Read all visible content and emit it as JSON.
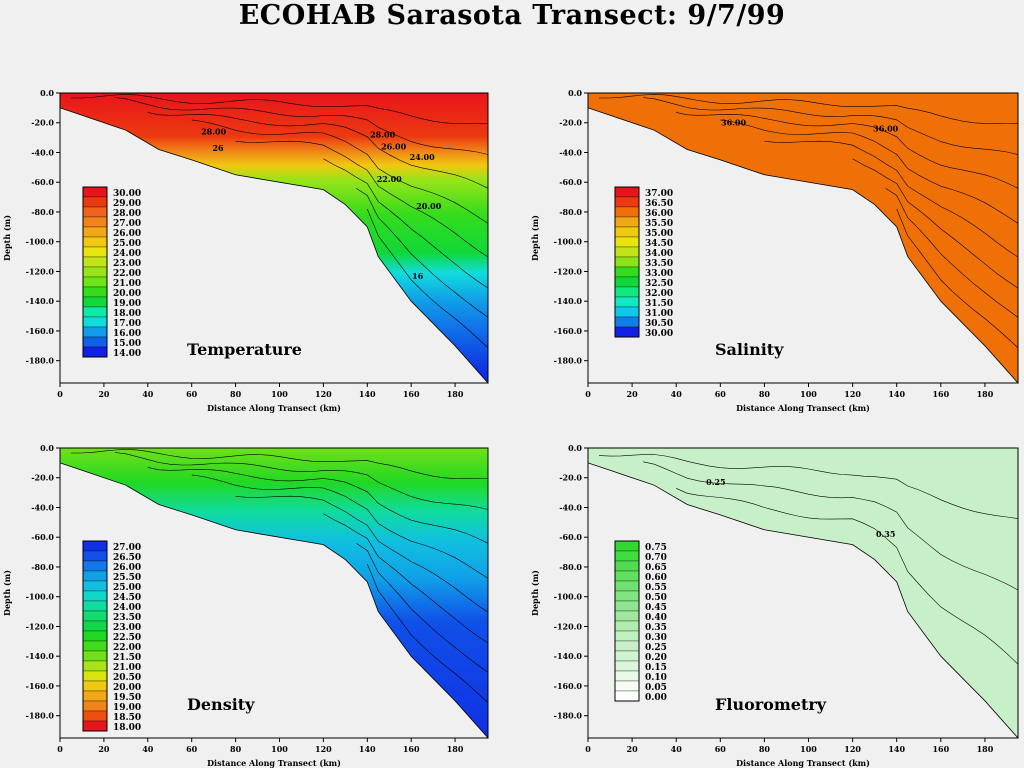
{
  "title": "ECOHAB Sarasota Transect: 9/7/99",
  "x_ticks": [
    "0",
    "20",
    "40",
    "60",
    "80",
    "100",
    "120",
    "140",
    "160",
    "180"
  ],
  "y_ticks": [
    "0.0",
    "-20.0",
    "-40.0",
    "-60.0",
    "-80.0",
    "-100.0",
    "-120.0",
    "-140.0",
    "-160.0",
    "-180.0"
  ],
  "chart_data": [
    {
      "type": "heatmap",
      "name": "Temperature",
      "title": "Temperature",
      "xlabel": "Distance Along Transect (km)",
      "ylabel": "Depth (m)",
      "xlim": [
        0,
        195
      ],
      "ylim": [
        -195,
        0
      ],
      "bottom_profile": {
        "x": [
          0,
          10,
          30,
          45,
          60,
          80,
          120,
          130,
          140,
          145,
          160,
          180,
          195
        ],
        "depth": [
          -10,
          -15,
          -25,
          -38,
          -45,
          -55,
          -65,
          -75,
          -90,
          -110,
          -140,
          -170,
          -195
        ]
      },
      "legend_levels": [
        "30.00",
        "29.00",
        "28.00",
        "27.00",
        "26.00",
        "25.00",
        "24.00",
        "23.00",
        "22.00",
        "21.00",
        "20.00",
        "19.00",
        "18.00",
        "17.00",
        "16.00",
        "15.00",
        "14.00"
      ],
      "legend_colors": [
        "#e8141c",
        "#ec3a10",
        "#f0621c",
        "#f08418",
        "#f0a814",
        "#f0c810",
        "#e8e410",
        "#c0e418",
        "#98e418",
        "#6ce418",
        "#34dc1c",
        "#10d838",
        "#10e8a8",
        "#10dcdc",
        "#109ce8",
        "#1060e8",
        "#1020e4"
      ],
      "contour_labels": [
        {
          "x": 70,
          "y": -28,
          "text": "28.00"
        },
        {
          "x": 147,
          "y": -30,
          "text": "28.00"
        },
        {
          "x": 152,
          "y": -38,
          "text": "26.00"
        },
        {
          "x": 165,
          "y": -45,
          "text": "24.00"
        },
        {
          "x": 150,
          "y": -60,
          "text": "22.00"
        },
        {
          "x": 168,
          "y": -78,
          "text": "20.00"
        },
        {
          "x": 72,
          "y": -39,
          "text": "26"
        },
        {
          "x": 163,
          "y": -125,
          "text": "16"
        }
      ]
    },
    {
      "type": "heatmap",
      "name": "Salinity",
      "title": "Salinity",
      "xlabel": "Distance Along Transect (km)",
      "ylabel": "Depth (m)",
      "xlim": [
        0,
        195
      ],
      "ylim": [
        -195,
        0
      ],
      "bottom_profile": {
        "x": [
          0,
          10,
          30,
          45,
          60,
          80,
          120,
          130,
          140,
          145,
          160,
          180,
          195
        ],
        "depth": [
          -10,
          -15,
          -25,
          -38,
          -45,
          -55,
          -65,
          -75,
          -90,
          -110,
          -140,
          -170,
          -195
        ]
      },
      "legend_levels": [
        "37.00",
        "36.50",
        "36.00",
        "35.50",
        "35.00",
        "34.50",
        "34.00",
        "33.50",
        "33.00",
        "32.50",
        "32.00",
        "31.50",
        "31.00",
        "30.50",
        "30.00"
      ],
      "legend_colors": [
        "#e8141c",
        "#ec3a10",
        "#f07008",
        "#f0a814",
        "#f0c810",
        "#e8e410",
        "#c0e418",
        "#8ce418",
        "#34dc1c",
        "#10d838",
        "#10e880",
        "#10e8c8",
        "#10c8e8",
        "#1080e8",
        "#1020e4"
      ],
      "contour_labels": [
        {
          "x": 66,
          "y": -22,
          "text": "36.00"
        },
        {
          "x": 135,
          "y": -26,
          "text": "36.00"
        }
      ]
    },
    {
      "type": "heatmap",
      "name": "Density",
      "title": "Density",
      "xlabel": "Distance Along Transect (km)",
      "ylabel": "Depth (m)",
      "xlim": [
        0,
        195
      ],
      "ylim": [
        -195,
        0
      ],
      "bottom_profile": {
        "x": [
          0,
          10,
          30,
          45,
          60,
          80,
          120,
          130,
          140,
          145,
          160,
          180,
          195
        ],
        "depth": [
          -10,
          -15,
          -25,
          -38,
          -45,
          -55,
          -65,
          -75,
          -90,
          -110,
          -140,
          -170,
          -195
        ]
      },
      "legend_levels": [
        "27.00",
        "26.50",
        "26.00",
        "25.50",
        "25.00",
        "24.50",
        "24.00",
        "23.50",
        "23.00",
        "22.50",
        "22.00",
        "21.50",
        "21.00",
        "20.50",
        "20.00",
        "19.50",
        "19.00",
        "18.50",
        "18.00"
      ],
      "legend_colors": [
        "#1030e4",
        "#1050e8",
        "#1078e8",
        "#10a0e8",
        "#10c0e0",
        "#10d8c8",
        "#10dca0",
        "#10dc70",
        "#10d848",
        "#20d824",
        "#40dc18",
        "#70e018",
        "#a8e418",
        "#d8e410",
        "#f0c810",
        "#f0a814",
        "#f08418",
        "#ec5010",
        "#e8141c"
      ],
      "contour_labels": []
    },
    {
      "type": "heatmap",
      "name": "Fluorometry",
      "title": "Fluorometry",
      "xlabel": "Distance Along Transect (km)",
      "ylabel": "Depth (m)",
      "xlim": [
        0,
        195
      ],
      "ylim": [
        -195,
        0
      ],
      "bottom_profile": {
        "x": [
          0,
          10,
          30,
          45,
          60,
          80,
          120,
          130,
          140,
          145,
          160,
          180,
          195
        ],
        "depth": [
          -10,
          -15,
          -25,
          -38,
          -45,
          -55,
          -65,
          -75,
          -90,
          -110,
          -140,
          -170,
          -195
        ]
      },
      "legend_levels": [
        "0.75",
        "0.70",
        "0.65",
        "0.60",
        "0.55",
        "0.50",
        "0.45",
        "0.40",
        "0.35",
        "0.30",
        "0.25",
        "0.20",
        "0.15",
        "0.10",
        "0.05",
        "0.00"
      ],
      "legend_colors": [
        "#30d830",
        "#40dc40",
        "#50dc50",
        "#60e060",
        "#70e070",
        "#80e480",
        "#90e490",
        "#a0e8a0",
        "#b0ecb0",
        "#c0f0c0",
        "#c8f0c8",
        "#d0f4d0",
        "#dcf6dc",
        "#e8fae8",
        "#f4fcf4",
        "#ffffff"
      ],
      "contour_labels": [
        {
          "x": 58,
          "y": -25,
          "text": "0.25"
        },
        {
          "x": 135,
          "y": -60,
          "text": "0.35"
        }
      ]
    }
  ]
}
